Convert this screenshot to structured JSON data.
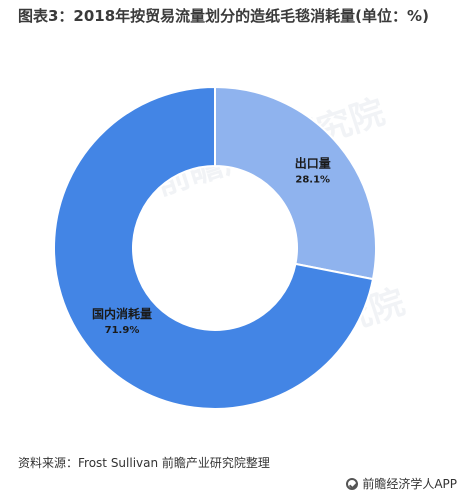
{
  "title": "图表3：2018年按贸易流量划分的造纸毛毯消耗量(单位：%)",
  "chart_data": {
    "type": "pie",
    "style": "donut",
    "categories": [
      "出口量",
      "国内消耗量"
    ],
    "values": [
      28.1,
      71.9
    ],
    "value_labels": [
      "28.1%",
      "71.9%"
    ],
    "colors": [
      "#8fb3ee",
      "#4385e5"
    ],
    "title": "图表3：2018年按贸易流量划分的造纸毛毯消耗量(单位：%)",
    "unit": "%"
  },
  "source": "资料来源：Frost Sullivan 前瞻产业研究院整理",
  "brand": "前瞻经济学人APP",
  "watermark": "前瞻产业研究院"
}
